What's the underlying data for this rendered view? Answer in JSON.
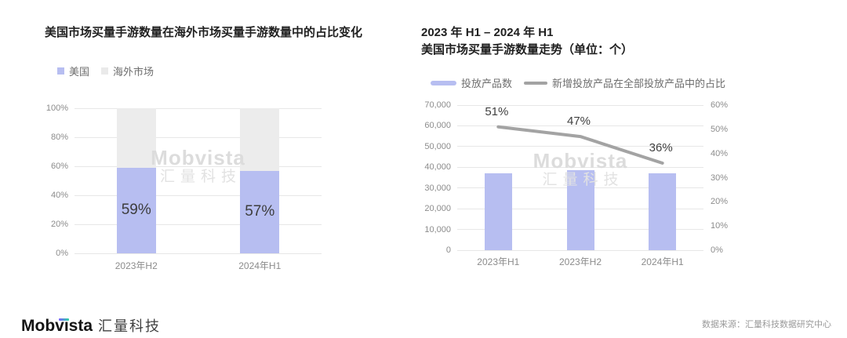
{
  "page": {
    "background": "#ffffff"
  },
  "colors": {
    "bar_purple": "#b7bef1",
    "bar_gray": "#ececec",
    "line_gray": "#a3a3a3",
    "gridline": "#e7e7e7",
    "axis_text": "#8c8c8c",
    "value_label_text": "#3d3d3d",
    "title_text": "#1f1f1f",
    "legend_text": "#6e6e6e",
    "logo_gradient_start": "#7b61ff",
    "logo_gradient_end": "#2fd6a3"
  },
  "watermark": {
    "line1": "Mobvista",
    "line2": "汇量科技"
  },
  "footer": {
    "logo_en": "Mobvista",
    "logo_cn": "汇量科技",
    "source": "数据来源：汇量科技数据研究中心"
  },
  "chart_data": [
    {
      "type": "bar",
      "stacked": true,
      "title": "美国市场买量手游数量在海外市场买量手游数量中的占比变化",
      "categories": [
        "2023年H2",
        "2024年H1"
      ],
      "series": [
        {
          "name": "美国",
          "values": [
            59,
            57
          ],
          "color": "#b7bef1"
        },
        {
          "name": "海外市场",
          "values": [
            41,
            43
          ],
          "color": "#ececec"
        }
      ],
      "value_labels": [
        "59%",
        "57%"
      ],
      "ylim": [
        0,
        100
      ],
      "yticks": [
        "0%",
        "20%",
        "40%",
        "60%",
        "80%",
        "100%"
      ],
      "grid": true,
      "legend_position": "top-left"
    },
    {
      "type": "combo",
      "title_line1": "2023 年 H1 – 2024 年 H1",
      "title_line2": "美国市场买量手游数量走势（单位：个）",
      "categories": [
        "2023年H1",
        "2023年H2",
        "2024年H1"
      ],
      "bar_series": {
        "name": "投放产品数",
        "values": [
          37000,
          38500,
          37000
        ],
        "color": "#b7bef1"
      },
      "line_series": {
        "name": "新增投放产品在全部投放产品中的占比",
        "values": [
          51,
          47,
          36
        ],
        "labels": [
          "51%",
          "47%",
          "36%"
        ],
        "color": "#a3a3a3"
      },
      "left_axis": {
        "min": 0,
        "max": 70000,
        "ticks": [
          "0",
          "10,000",
          "20,000",
          "30,000",
          "40,000",
          "50,000",
          "60,000",
          "70,000"
        ]
      },
      "right_axis": {
        "min": 0,
        "max": 60,
        "ticks": [
          "0%",
          "10%",
          "20%",
          "30%",
          "40%",
          "50%",
          "60%"
        ]
      },
      "grid": true,
      "legend_position": "top-left"
    }
  ]
}
